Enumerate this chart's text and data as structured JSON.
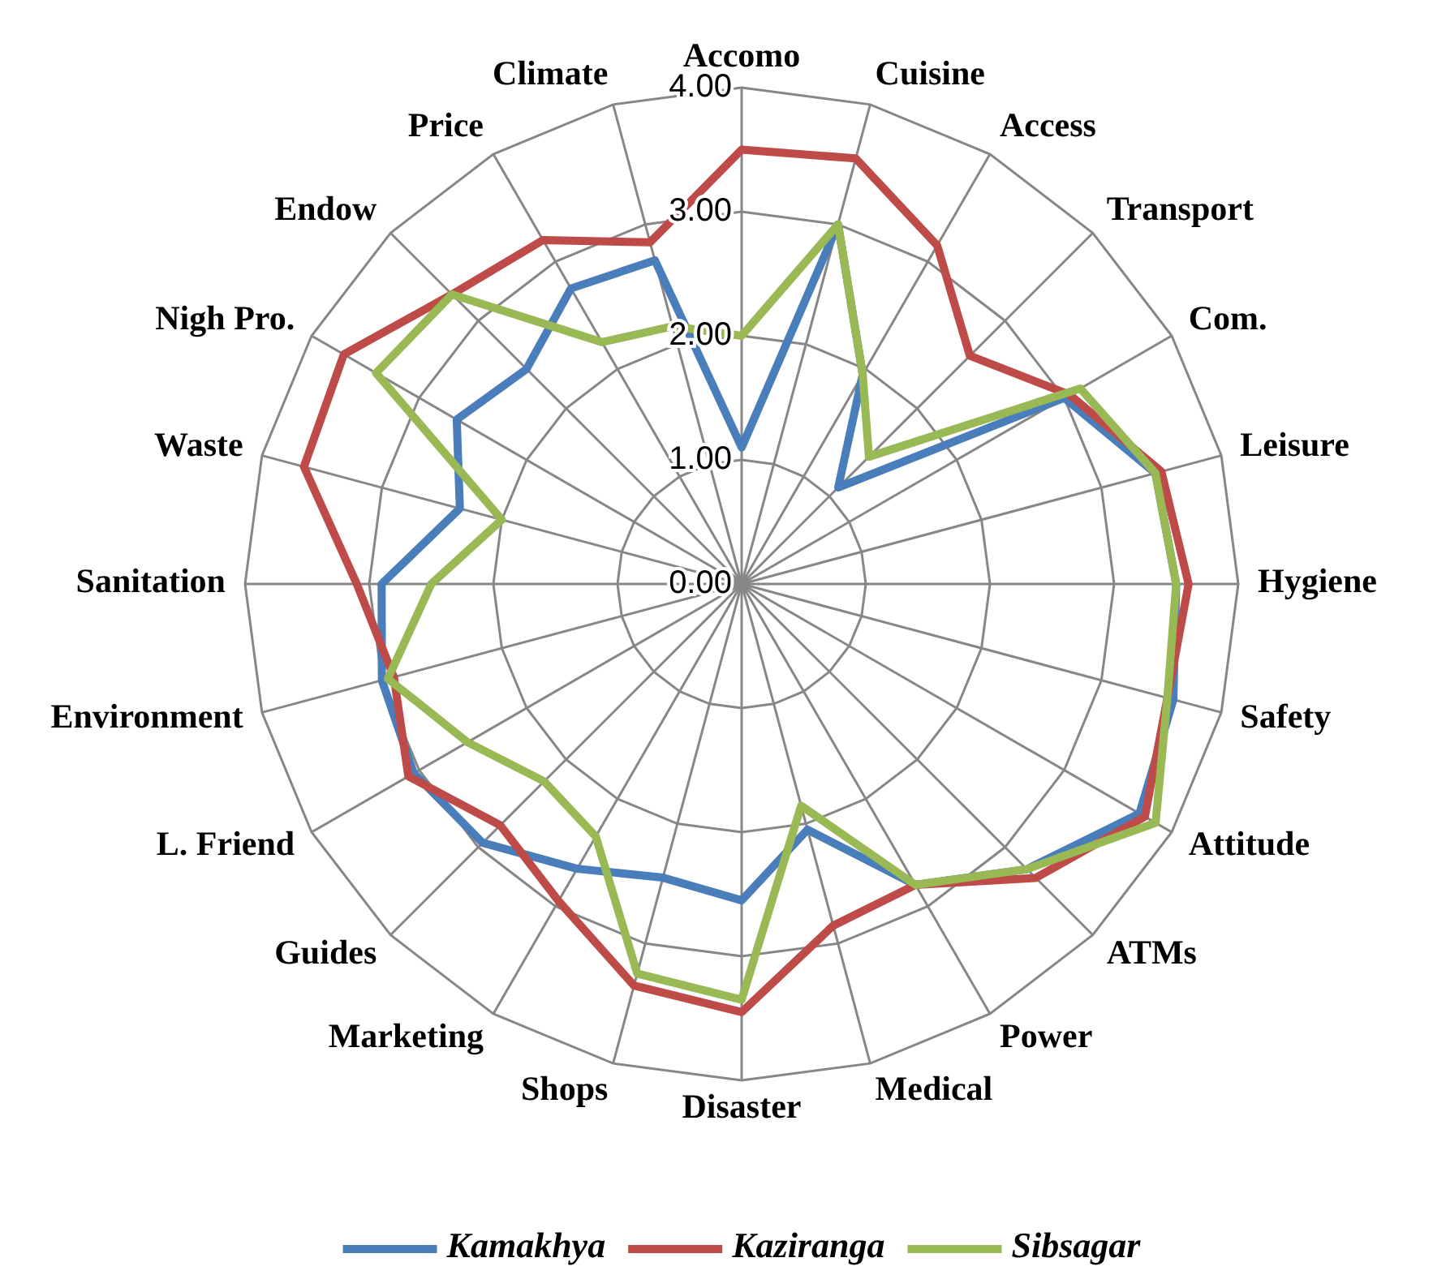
{
  "chart_data": {
    "type": "radar",
    "categories": [
      "Accomo",
      "Cuisine",
      "Access",
      "Transport",
      "Com.",
      "Leisure",
      "Hygiene",
      "Safety",
      "Attitude",
      "ATMs",
      "Power",
      "Medical",
      "Disaster",
      "Shops",
      "Marketing",
      "Guides",
      "L. Friend",
      "Environment",
      "Sanitation",
      "Waste",
      "Nigh Pro.",
      "Endow",
      "Price",
      "Climate"
    ],
    "ylim": [
      0,
      4
    ],
    "yticks": [
      {
        "value": 0,
        "label": "0.00"
      },
      {
        "value": 1,
        "label": "1.00"
      },
      {
        "value": 2,
        "label": "2.00"
      },
      {
        "value": 3,
        "label": "3.00"
      },
      {
        "value": 4,
        "label": "4.00"
      }
    ],
    "grid": true,
    "legend": "bottom",
    "marker": "none",
    "series": [
      {
        "name": "Kamakhya",
        "color": "#4a7ebb",
        "values": [
          1.1,
          3.0,
          1.95,
          1.1,
          3.0,
          3.45,
          3.5,
          3.6,
          3.7,
          3.25,
          2.8,
          2.05,
          2.55,
          2.45,
          2.65,
          2.95,
          3.05,
          3.0,
          2.9,
          2.35,
          2.65,
          2.45,
          2.75,
          2.7
        ]
      },
      {
        "name": "Kaziranga",
        "color": "#be4b48",
        "values": [
          3.5,
          3.55,
          3.15,
          2.6,
          3.05,
          3.5,
          3.6,
          3.55,
          3.75,
          3.35,
          2.8,
          2.85,
          3.45,
          3.35,
          2.95,
          2.75,
          3.1,
          2.9,
          3.1,
          3.65,
          3.7,
          3.3,
          3.2,
          2.85
        ]
      },
      {
        "name": "Sibsagar",
        "color": "#98b954",
        "values": [
          2.0,
          3.0,
          1.95,
          1.45,
          3.15,
          3.45,
          3.5,
          3.55,
          3.85,
          3.25,
          2.8,
          1.85,
          3.35,
          3.25,
          2.35,
          2.25,
          2.55,
          2.95,
          2.5,
          2.0,
          3.4,
          3.3,
          2.25,
          2.15
        ]
      }
    ]
  }
}
